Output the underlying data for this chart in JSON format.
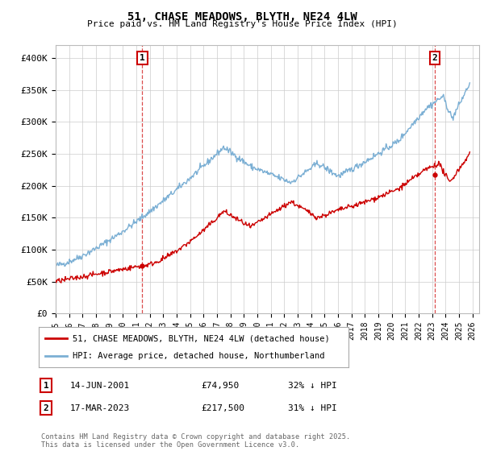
{
  "title": "51, CHASE MEADOWS, BLYTH, NE24 4LW",
  "subtitle": "Price paid vs. HM Land Registry's House Price Index (HPI)",
  "ylabel_ticks": [
    "£0",
    "£50K",
    "£100K",
    "£150K",
    "£200K",
    "£250K",
    "£300K",
    "£350K",
    "£400K"
  ],
  "ytick_vals": [
    0,
    50000,
    100000,
    150000,
    200000,
    250000,
    300000,
    350000,
    400000
  ],
  "ylim": [
    0,
    420000
  ],
  "xlim_start": 1995.0,
  "xlim_end": 2026.5,
  "legend_line1": "51, CHASE MEADOWS, BLYTH, NE24 4LW (detached house)",
  "legend_line2": "HPI: Average price, detached house, Northumberland",
  "sale1_label": "1",
  "sale1_date": "14-JUN-2001",
  "sale1_price": "£74,950",
  "sale1_hpi": "32% ↓ HPI",
  "sale1_year": 2001.45,
  "sale1_value": 74950,
  "sale2_label": "2",
  "sale2_date": "17-MAR-2023",
  "sale2_price": "£217,500",
  "sale2_hpi": "31% ↓ HPI",
  "sale2_year": 2023.21,
  "sale2_value": 217500,
  "red_color": "#cc0000",
  "blue_color": "#7bafd4",
  "copyright_text": "Contains HM Land Registry data © Crown copyright and database right 2025.\nThis data is licensed under the Open Government Licence v3.0.",
  "xticks": [
    1995,
    1996,
    1997,
    1998,
    1999,
    2000,
    2001,
    2002,
    2003,
    2004,
    2005,
    2006,
    2007,
    2008,
    2009,
    2010,
    2011,
    2012,
    2013,
    2014,
    2015,
    2016,
    2017,
    2018,
    2019,
    2020,
    2021,
    2022,
    2023,
    2024,
    2025,
    2026
  ],
  "bg_color": "#f0f0f0",
  "plot_bg": "#ffffff"
}
